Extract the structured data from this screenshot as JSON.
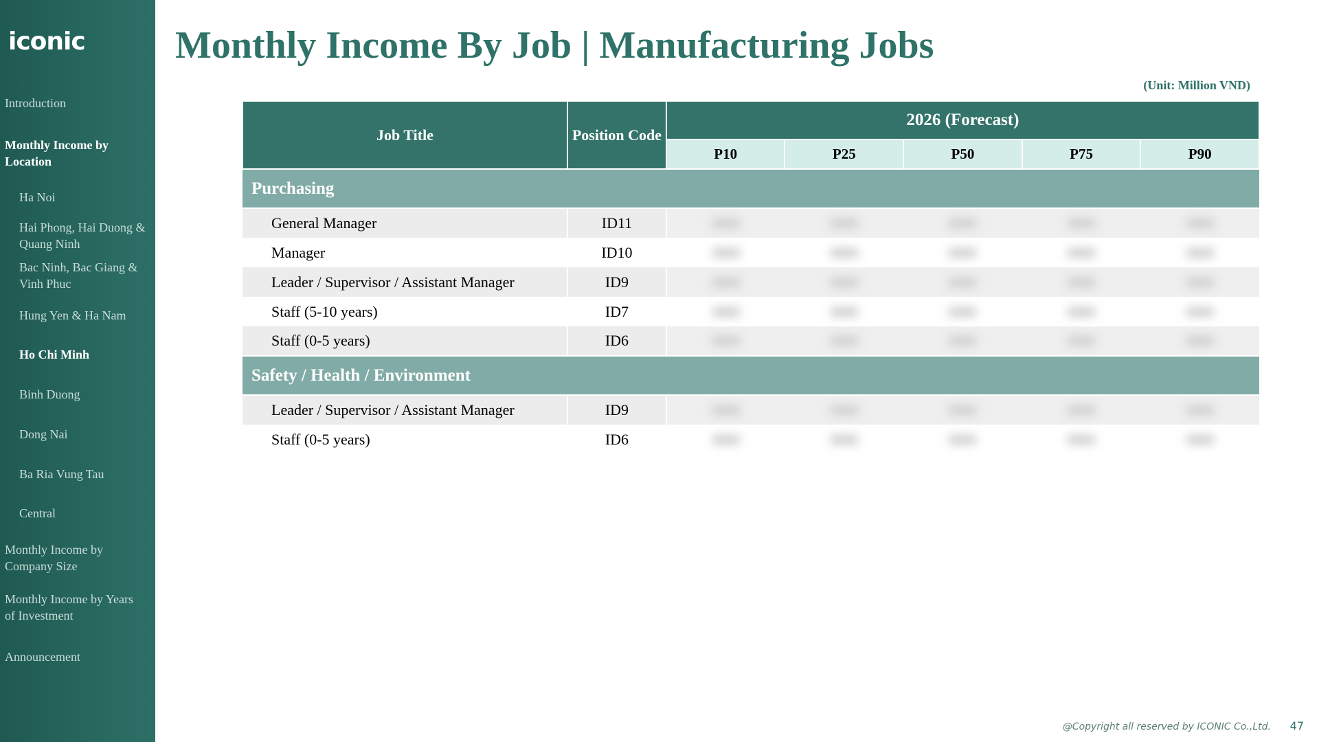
{
  "sidebar": {
    "logo": "iconic",
    "items": [
      {
        "label": "Introduction"
      },
      {
        "label": "Monthly Income by Location"
      },
      {
        "label": "Ha Noi"
      },
      {
        "label": "Hai Phong, Hai Duong & Quang Ninh"
      },
      {
        "label": "Bac Ninh, Bac Giang & Vinh Phuc"
      },
      {
        "label": "Hung Yen & Ha Nam"
      },
      {
        "label": "Ho Chi Minh"
      },
      {
        "label": "Binh Duong"
      },
      {
        "label": "Dong Nai"
      },
      {
        "label": "Ba Ria Vung Tau"
      },
      {
        "label": "Central"
      },
      {
        "label": "Monthly Income by Company Size"
      },
      {
        "label": "Monthly Income by Years of Investment"
      },
      {
        "label": "Announcement"
      }
    ]
  },
  "header": {
    "title": "Monthly Income By Job | Manufacturing Jobs",
    "unit": "(Unit: Million VND)"
  },
  "table": {
    "col_job": "Job Title",
    "col_code": "Position Code",
    "col_year": "2026 (Forecast)",
    "percentiles": [
      "P10",
      "P25",
      "P50",
      "P75",
      "P90"
    ],
    "sections": [
      {
        "name": "Purchasing",
        "rows": [
          {
            "title": "General Manager",
            "code": "ID11"
          },
          {
            "title": "Manager",
            "code": "ID10"
          },
          {
            "title": "Leader / Supervisor / Assistant Manager",
            "code": "ID9"
          },
          {
            "title": "Staff (5-10 years)",
            "code": "ID7"
          },
          {
            "title": "Staff (0-5 years)",
            "code": "ID6"
          }
        ]
      },
      {
        "name": "Safety / Health / Environment",
        "rows": [
          {
            "title": "Leader / Supervisor / Assistant Manager",
            "code": "ID9"
          },
          {
            "title": "Staff (0-5 years)",
            "code": "ID6"
          }
        ]
      }
    ]
  },
  "footer": {
    "copyright": "@Copyright all reserved by ICONIC Co.,Ltd.",
    "page": "47"
  }
}
